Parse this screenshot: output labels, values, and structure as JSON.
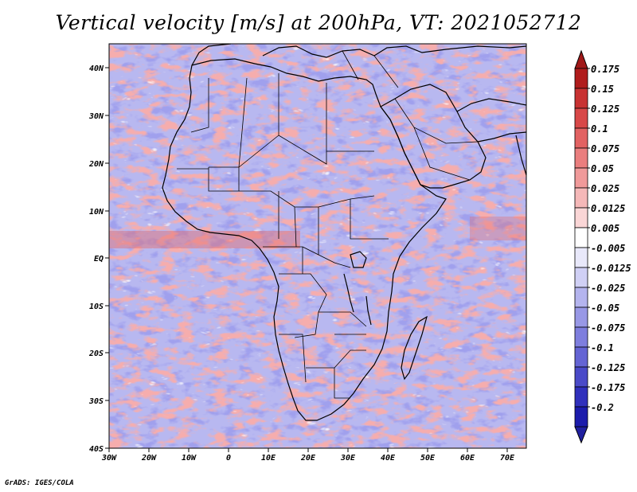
{
  "title": "Vertical velocity [m/s] at 200hPa, VT: 2021052712",
  "credit": "GrADS: IGES/COLA",
  "map": {
    "region": "Africa and surrounding oceans",
    "variable": "vertical velocity",
    "level": "200hPa",
    "lat_labels": [
      "40N",
      "30N",
      "20N",
      "10N",
      "EQ",
      "10S",
      "20S",
      "30S",
      "40S"
    ],
    "lon_labels": [
      "30W",
      "20W",
      "10W",
      "0",
      "10E",
      "20E",
      "30E",
      "40E",
      "50E",
      "60E",
      "70E"
    ],
    "lat_range": [
      -40,
      45
    ],
    "lon_range": [
      -30,
      75
    ],
    "background_color": "#b8b8f0"
  },
  "colorbar": {
    "labels": [
      "0.175",
      "0.15",
      "0.125",
      "0.1",
      "0.075",
      "0.05",
      "0.025",
      "0.0125",
      "0.005",
      "-0.005",
      "-0.0125",
      "-0.025",
      "-0.05",
      "-0.075",
      "-0.1",
      "-0.125",
      "-0.175",
      "-0.2"
    ],
    "colors": [
      "#b01c1c",
      "#c83232",
      "#d84848",
      "#e26262",
      "#ea7e7e",
      "#f09a9a",
      "#f5b8b8",
      "#fad6d6",
      "#ffffff",
      "#e8e8fa",
      "#d0d0f5",
      "#b4b4ee",
      "#9898e6",
      "#7e7ede",
      "#6464d4",
      "#4a4ac8",
      "#3030bc",
      "#1c1cac"
    ],
    "top_arrow_color": "#a01818",
    "bottom_arrow_color": "#2020a0"
  }
}
